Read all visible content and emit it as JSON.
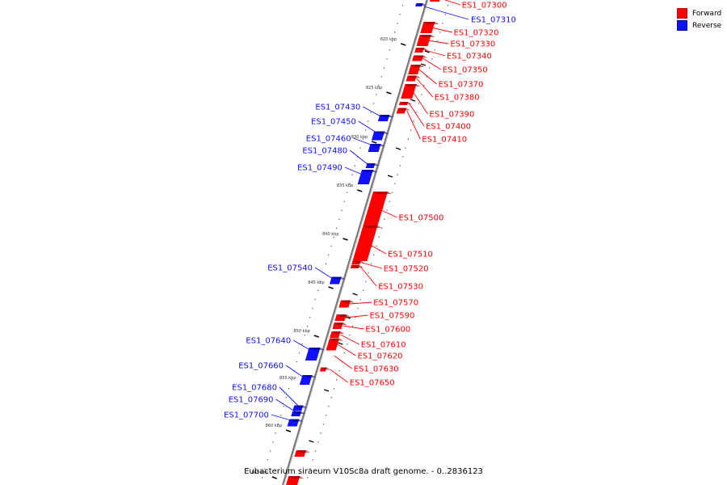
{
  "caption": "Eubacterium siraeum V10Sc8a draft genome. - 0..2836123",
  "legend": {
    "forward": {
      "label": "Forward",
      "color": "#ff0000"
    },
    "reverse": {
      "label": "Reverse",
      "color": "#1010ff"
    }
  },
  "ticks": [
    "820 kbp",
    "825 kbp",
    "830 kbp",
    "835 kbp",
    "840 kbp",
    "845 kbp",
    "850 kbp",
    "855 kbp",
    "860 kbp",
    "865 kbp"
  ],
  "genes": {
    "forward": [
      "ES1_07300",
      "ES1_07320",
      "ES1_07330",
      "ES1_07340",
      "ES1_07350",
      "ES1_07370",
      "ES1_07380",
      "ES1_07390",
      "ES1_07400",
      "ES1_07410",
      "ES1_07500",
      "ES1_07510",
      "ES1_07520",
      "ES1_07530",
      "ES1_07570",
      "ES1_07590",
      "ES1_07600",
      "ES1_07610",
      "ES1_07620",
      "ES1_07630",
      "ES1_07650"
    ],
    "reverse": [
      "ES1_07310",
      "ES1_07430",
      "ES1_07450",
      "ES1_07460",
      "ES1_07480",
      "ES1_07490",
      "ES1_07540",
      "ES1_07640",
      "ES1_07660",
      "ES1_07680",
      "ES1_07690",
      "ES1_07700"
    ]
  }
}
